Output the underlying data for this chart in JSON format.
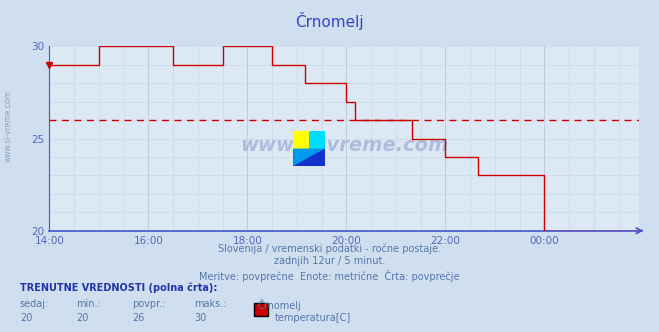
{
  "title": "Črnomelj",
  "bg_color": "#d0dff0",
  "plot_bg_color": "#dde8f5",
  "line_color": "#cc0000",
  "avg_line_color": "#cc0000",
  "avg_value": 26,
  "ymin": 20,
  "ymax": 30,
  "yticks": [
    20,
    25,
    30
  ],
  "tick_color": "#5566bb",
  "title_color": "#3344cc",
  "grid_color": "#bbccdd",
  "axis_color": "#4455cc",
  "subtitle1": "Slovenija / vremenski podatki - ročne postaje.",
  "subtitle2": "zadnjih 12ur / 5 minut.",
  "subtitle3": "Meritve: povprečne  Enote: metrične  Črta: povprečje",
  "footer_bold": "TRENUTNE VREDNOSTI (polna črta):",
  "col_headers": [
    "sedaj:",
    "min.:",
    "povpr.:",
    "maks.:"
  ],
  "col_values": [
    "20",
    "20",
    "26",
    "30"
  ],
  "legend_label": "temperatura[C]",
  "legend_color": "#cc0000",
  "watermark": "www.si-vreme.com",
  "side_watermark": "www.si-vreme.com",
  "xtick_labels": [
    "14:00",
    "16:00",
    "18:00",
    "20:00",
    "22:00",
    "00:00"
  ],
  "xtick_positions": [
    0,
    24,
    48,
    72,
    96,
    120
  ],
  "time_data": [
    0,
    1,
    2,
    3,
    4,
    5,
    6,
    7,
    8,
    9,
    10,
    11,
    12,
    13,
    14,
    15,
    16,
    17,
    18,
    19,
    20,
    21,
    22,
    23,
    24,
    25,
    26,
    27,
    28,
    29,
    30,
    31,
    32,
    33,
    34,
    35,
    36,
    37,
    38,
    39,
    40,
    41,
    42,
    43,
    44,
    45,
    46,
    47,
    48,
    49,
    50,
    51,
    52,
    53,
    54,
    55,
    56,
    57,
    58,
    59,
    60,
    61,
    62,
    63,
    64,
    65,
    66,
    67,
    68,
    69,
    70,
    71,
    72,
    73,
    74,
    75,
    76,
    77,
    78,
    79,
    80,
    81,
    82,
    83,
    84,
    85,
    86,
    87,
    88,
    89,
    90,
    91,
    92,
    93,
    94,
    95,
    96,
    97,
    98,
    99,
    100,
    101,
    102,
    103,
    104,
    105,
    106,
    107,
    108,
    109,
    110,
    111,
    112,
    113,
    114,
    115,
    116,
    117,
    118,
    119,
    120,
    121,
    122,
    123,
    124,
    125,
    126,
    127,
    128,
    129,
    130,
    131,
    132,
    133,
    134,
    135,
    136,
    137,
    138,
    139,
    140,
    141,
    142,
    143
  ],
  "temp_data": [
    29,
    29,
    29,
    29,
    29,
    29,
    29,
    29,
    29,
    29,
    29,
    29,
    30,
    30,
    30,
    30,
    30,
    30,
    30,
    30,
    30,
    30,
    30,
    30,
    30,
    30,
    30,
    30,
    30,
    30,
    29,
    29,
    29,
    29,
    29,
    29,
    29,
    29,
    29,
    29,
    29,
    29,
    30,
    30,
    30,
    30,
    30,
    30,
    30,
    30,
    30,
    30,
    30,
    30,
    29,
    29,
    29,
    29,
    29,
    29,
    29,
    29,
    28,
    28,
    28,
    28,
    28,
    28,
    28,
    28,
    28,
    28,
    27,
    27,
    26,
    26,
    26,
    26,
    26,
    26,
    26,
    26,
    26,
    26,
    26,
    26,
    26,
    26,
    25,
    25,
    25,
    25,
    25,
    25,
    25,
    25,
    24,
    24,
    24,
    24,
    24,
    24,
    24,
    24,
    23,
    23,
    23,
    23,
    23,
    23,
    23,
    23,
    23,
    23,
    23,
    23,
    23,
    23,
    23,
    23,
    20,
    20,
    20,
    20,
    20,
    20,
    20,
    20,
    20,
    20,
    20,
    20,
    20,
    20,
    20,
    20,
    20,
    20,
    20,
    20,
    20,
    20,
    20,
    20
  ]
}
